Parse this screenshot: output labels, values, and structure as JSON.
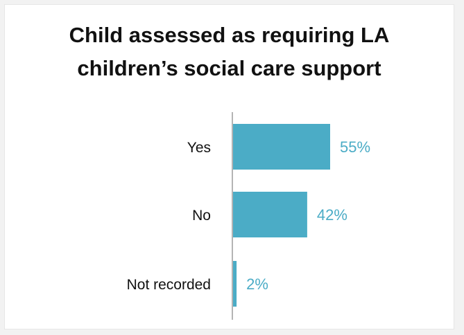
{
  "chart_data": {
    "type": "bar",
    "orientation": "horizontal",
    "title_lines": [
      "Child assessed as requiring LA",
      "children’s social care support"
    ],
    "categories": [
      "Yes",
      "No",
      "Not recorded"
    ],
    "values": [
      55,
      42,
      2
    ],
    "value_labels": [
      "55%",
      "42%",
      "2%"
    ],
    "xlabel": "",
    "ylabel": "",
    "xlim": [
      0,
      100
    ],
    "grid": false,
    "legend": "none",
    "bar_color": "#4bacc6",
    "label_color": "#4bacc6"
  }
}
